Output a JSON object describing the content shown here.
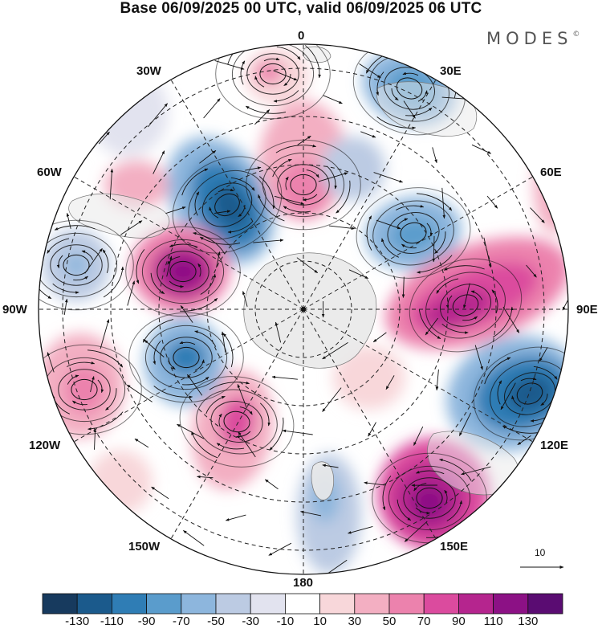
{
  "title": "Base 06/09/2025 00 UTC, valid 06/09/2025 06 UTC",
  "logo": {
    "text": "MODES",
    "mark": "©"
  },
  "longitude_labels": {
    "lon_0": "0",
    "lon_30e": "30E",
    "lon_60e": "60E",
    "lon_90e": "90E",
    "lon_120e": "120E",
    "lon_150e": "150E",
    "lon_180": "180",
    "lon_150w": "150W",
    "lon_120w": "120W",
    "lon_90w": "90W",
    "lon_60w": "60W",
    "lon_30w": "30W"
  },
  "reference_vector": {
    "label": "10",
    "icon": "arrow-right-icon"
  },
  "colorbar": {
    "labels": [
      "-130",
      "-110",
      "-90",
      "-70",
      "-50",
      "-30",
      "-10",
      "10",
      "30",
      "50",
      "70",
      "90",
      "110",
      "130"
    ],
    "colors": [
      "#173a5e",
      "#1b5a8c",
      "#2f7db5",
      "#5a9ccc",
      "#8db6dd",
      "#bccbe3",
      "#e2e3ef",
      "#ffffff",
      "#f8d7da",
      "#f3afc2",
      "#ec82ad",
      "#db4b9e",
      "#b5258e",
      "#8c1185",
      "#5a0c72"
    ]
  },
  "colors": {
    "land": "#ebebeb",
    "grid": "#222222",
    "contour": "#111111",
    "wind": "#111111"
  }
}
